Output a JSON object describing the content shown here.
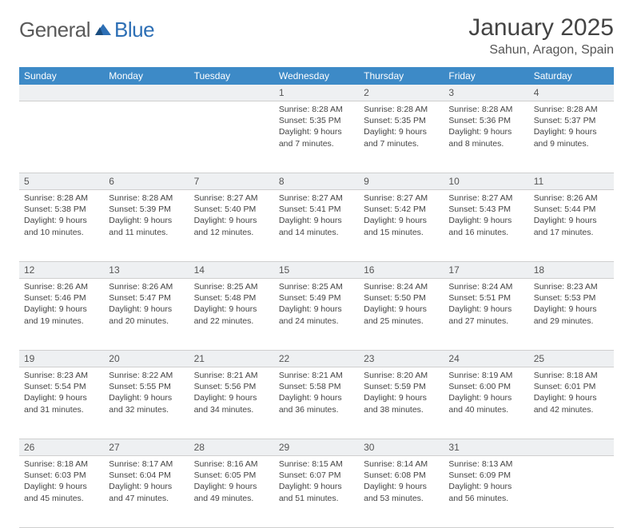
{
  "logo": {
    "text_general": "General",
    "text_blue": "Blue",
    "icon_name": "sail-icon",
    "brand_color": "#2d6fb5",
    "gray_color": "#5a5a5a"
  },
  "header": {
    "month_title": "January 2025",
    "location": "Sahun, Aragon, Spain"
  },
  "colors": {
    "header_bg": "#3d8ac7",
    "header_fg": "#ffffff",
    "daynum_bg": "#eef0f2",
    "border": "#cfcfcf",
    "text": "#444444"
  },
  "day_headers": [
    "Sunday",
    "Monday",
    "Tuesday",
    "Wednesday",
    "Thursday",
    "Friday",
    "Saturday"
  ],
  "weeks": [
    [
      null,
      null,
      null,
      {
        "n": "1",
        "sr": "8:28 AM",
        "ss": "5:35 PM",
        "dl": "9 hours and 7 minutes."
      },
      {
        "n": "2",
        "sr": "8:28 AM",
        "ss": "5:35 PM",
        "dl": "9 hours and 7 minutes."
      },
      {
        "n": "3",
        "sr": "8:28 AM",
        "ss": "5:36 PM",
        "dl": "9 hours and 8 minutes."
      },
      {
        "n": "4",
        "sr": "8:28 AM",
        "ss": "5:37 PM",
        "dl": "9 hours and 9 minutes."
      }
    ],
    [
      {
        "n": "5",
        "sr": "8:28 AM",
        "ss": "5:38 PM",
        "dl": "9 hours and 10 minutes."
      },
      {
        "n": "6",
        "sr": "8:28 AM",
        "ss": "5:39 PM",
        "dl": "9 hours and 11 minutes."
      },
      {
        "n": "7",
        "sr": "8:27 AM",
        "ss": "5:40 PM",
        "dl": "9 hours and 12 minutes."
      },
      {
        "n": "8",
        "sr": "8:27 AM",
        "ss": "5:41 PM",
        "dl": "9 hours and 14 minutes."
      },
      {
        "n": "9",
        "sr": "8:27 AM",
        "ss": "5:42 PM",
        "dl": "9 hours and 15 minutes."
      },
      {
        "n": "10",
        "sr": "8:27 AM",
        "ss": "5:43 PM",
        "dl": "9 hours and 16 minutes."
      },
      {
        "n": "11",
        "sr": "8:26 AM",
        "ss": "5:44 PM",
        "dl": "9 hours and 17 minutes."
      }
    ],
    [
      {
        "n": "12",
        "sr": "8:26 AM",
        "ss": "5:46 PM",
        "dl": "9 hours and 19 minutes."
      },
      {
        "n": "13",
        "sr": "8:26 AM",
        "ss": "5:47 PM",
        "dl": "9 hours and 20 minutes."
      },
      {
        "n": "14",
        "sr": "8:25 AM",
        "ss": "5:48 PM",
        "dl": "9 hours and 22 minutes."
      },
      {
        "n": "15",
        "sr": "8:25 AM",
        "ss": "5:49 PM",
        "dl": "9 hours and 24 minutes."
      },
      {
        "n": "16",
        "sr": "8:24 AM",
        "ss": "5:50 PM",
        "dl": "9 hours and 25 minutes."
      },
      {
        "n": "17",
        "sr": "8:24 AM",
        "ss": "5:51 PM",
        "dl": "9 hours and 27 minutes."
      },
      {
        "n": "18",
        "sr": "8:23 AM",
        "ss": "5:53 PM",
        "dl": "9 hours and 29 minutes."
      }
    ],
    [
      {
        "n": "19",
        "sr": "8:23 AM",
        "ss": "5:54 PM",
        "dl": "9 hours and 31 minutes."
      },
      {
        "n": "20",
        "sr": "8:22 AM",
        "ss": "5:55 PM",
        "dl": "9 hours and 32 minutes."
      },
      {
        "n": "21",
        "sr": "8:21 AM",
        "ss": "5:56 PM",
        "dl": "9 hours and 34 minutes."
      },
      {
        "n": "22",
        "sr": "8:21 AM",
        "ss": "5:58 PM",
        "dl": "9 hours and 36 minutes."
      },
      {
        "n": "23",
        "sr": "8:20 AM",
        "ss": "5:59 PM",
        "dl": "9 hours and 38 minutes."
      },
      {
        "n": "24",
        "sr": "8:19 AM",
        "ss": "6:00 PM",
        "dl": "9 hours and 40 minutes."
      },
      {
        "n": "25",
        "sr": "8:18 AM",
        "ss": "6:01 PM",
        "dl": "9 hours and 42 minutes."
      }
    ],
    [
      {
        "n": "26",
        "sr": "8:18 AM",
        "ss": "6:03 PM",
        "dl": "9 hours and 45 minutes."
      },
      {
        "n": "27",
        "sr": "8:17 AM",
        "ss": "6:04 PM",
        "dl": "9 hours and 47 minutes."
      },
      {
        "n": "28",
        "sr": "8:16 AM",
        "ss": "6:05 PM",
        "dl": "9 hours and 49 minutes."
      },
      {
        "n": "29",
        "sr": "8:15 AM",
        "ss": "6:07 PM",
        "dl": "9 hours and 51 minutes."
      },
      {
        "n": "30",
        "sr": "8:14 AM",
        "ss": "6:08 PM",
        "dl": "9 hours and 53 minutes."
      },
      {
        "n": "31",
        "sr": "8:13 AM",
        "ss": "6:09 PM",
        "dl": "9 hours and 56 minutes."
      },
      null
    ]
  ],
  "labels": {
    "sunrise": "Sunrise:",
    "sunset": "Sunset:",
    "daylight": "Daylight:"
  }
}
